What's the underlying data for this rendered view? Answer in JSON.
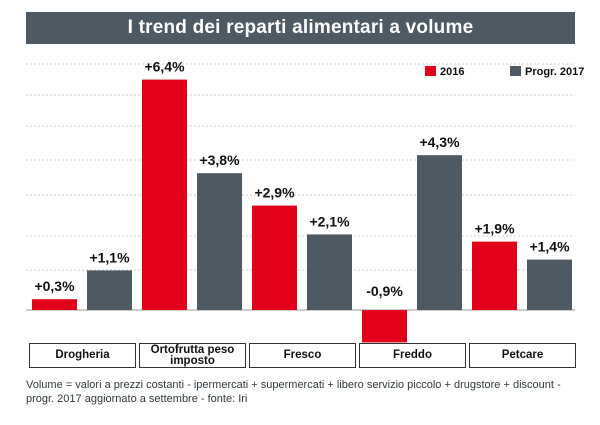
{
  "title": "I trend dei reparti alimentari a volume",
  "caption": {
    "line1": "Volume = valori a prezzi costanti - ipermercati + supermercati + libero servizio piccolo + drugstore + discount -",
    "line2": "progr. 2017 aggiornato a settembre - fonte: Iri"
  },
  "colors": {
    "red": "#e2001a",
    "gray": "#4d5a63",
    "title_bg": "#4d5a63",
    "grid": "#cccccc"
  },
  "chart_data": {
    "type": "bar",
    "title": "I trend dei reparti alimentari a volume",
    "categories": [
      "Drogheria",
      "Ortofrutta peso imposto",
      "Fresco",
      "Freddo",
      "Petcare"
    ],
    "series": [
      {
        "name": "2016",
        "color": "#e2001a",
        "values": [
          0.3,
          6.4,
          2.9,
          -0.9,
          1.9
        ],
        "labels": [
          "+0,3%",
          "+6,4%",
          "+2,9%",
          "-0,9%",
          "+1,9%"
        ]
      },
      {
        "name": "Progr. 2017",
        "color": "#4d5a63",
        "values": [
          1.1,
          3.8,
          2.1,
          4.3,
          1.4
        ],
        "labels": [
          "+1,1%",
          "+3,8%",
          "+2,1%",
          "+4,3%",
          "+1,4%"
        ]
      }
    ],
    "legend": {
      "position": "top-right",
      "entries": [
        "2016",
        "Progr. 2017"
      ]
    },
    "ylim": [
      -1.2,
      6.8
    ],
    "grid": true
  }
}
